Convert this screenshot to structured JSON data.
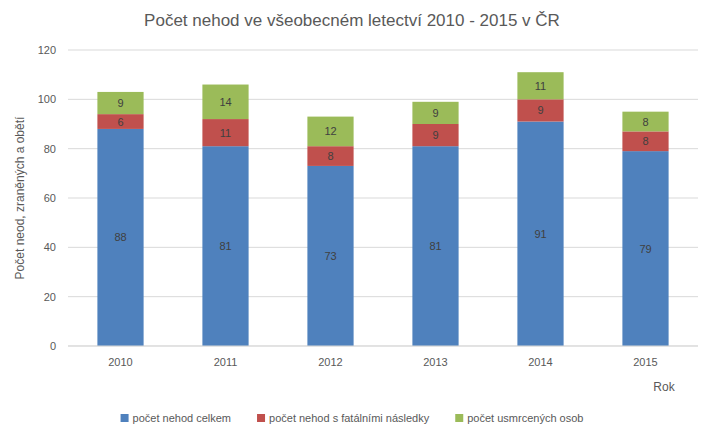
{
  "chart_data": {
    "type": "bar",
    "title": "Počet nehod ve všeobecném letectví 2010 - 2015 v ČR",
    "x_label": "Rok",
    "y_label": "Počet neod, zraněných a obětí",
    "categories": [
      "2010",
      "2011",
      "2012",
      "2013",
      "2014",
      "2015"
    ],
    "series": [
      {
        "name": "počet nehod celkem",
        "color": "#4f81bd",
        "values": [
          88,
          81,
          73,
          81,
          91,
          79
        ]
      },
      {
        "name": "počet nehod s fatálními následky",
        "color": "#c0504d",
        "values": [
          6,
          11,
          8,
          9,
          9,
          8
        ]
      },
      {
        "name": "počet usmrcených osob",
        "color": "#9bbb59",
        "values": [
          9,
          14,
          12,
          9,
          11,
          8
        ]
      }
    ],
    "ylim": [
      0,
      120
    ],
    "yticks": [
      0,
      20,
      40,
      60,
      80,
      100,
      120
    ],
    "stacked": true,
    "data_labels": true,
    "grid": true,
    "legend": "bottom"
  }
}
